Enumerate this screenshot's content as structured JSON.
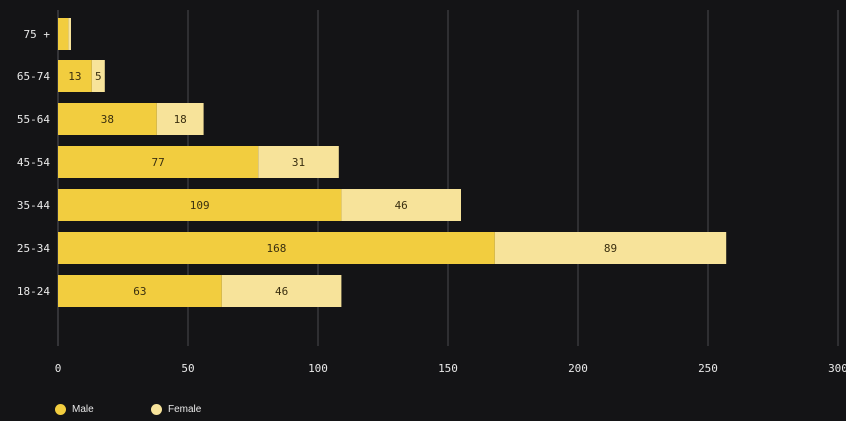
{
  "chart_data": {
    "type": "bar",
    "orientation": "horizontal",
    "stacked": true,
    "categories": [
      "75 +",
      "65-74",
      "55-64",
      "45-54",
      "35-44",
      "25-34",
      "18-24"
    ],
    "series": [
      {
        "name": "Male",
        "values": [
          4,
          13,
          38,
          77,
          109,
          168,
          63
        ],
        "labels": [
          "",
          "13",
          "38",
          "77",
          "109",
          "168",
          "63"
        ],
        "color": "#f2cd3f"
      },
      {
        "name": "Female",
        "values": [
          1,
          5,
          18,
          31,
          46,
          89,
          46
        ],
        "labels": [
          "",
          "5",
          "18",
          "31",
          "46",
          "89",
          "46"
        ],
        "color": "#f7e39a"
      }
    ],
    "x_ticks": [
      "0",
      "50",
      "100",
      "150",
      "200",
      "250",
      "300"
    ],
    "xlim": [
      0,
      300
    ],
    "grid": true,
    "legend_position": "bottom-left"
  },
  "colors": {
    "background": "#141416",
    "grid": "#4a4a4e",
    "text": "#e9e9e9",
    "label_text": "#3a2f10"
  }
}
